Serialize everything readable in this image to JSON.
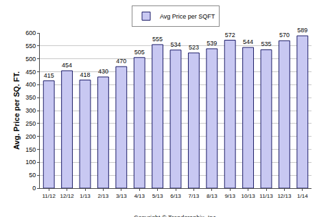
{
  "chart_data": {
    "type": "bar",
    "categories": [
      "11/12",
      "12/12",
      "1/13",
      "2/13",
      "3/13",
      "4/13",
      "5/13",
      "6/13",
      "7/13",
      "8/13",
      "9/13",
      "10/13",
      "11/13",
      "12/13",
      "1/14"
    ],
    "series": [
      {
        "name": "Avg Price per SQFT",
        "color": "#c8c8f2",
        "values": [
          415,
          454,
          418,
          430,
          470,
          505,
          555,
          534,
          523,
          539,
          572,
          544,
          535,
          570,
          589
        ]
      }
    ],
    "y_label": "Avg. Price per SQ. FT.",
    "ylim": [
      0,
      600
    ],
    "yticks": [
      0,
      50,
      100,
      150,
      200,
      250,
      300,
      350,
      400,
      450,
      500,
      550,
      600
    ],
    "grid": true,
    "legend": "top",
    "data_labels": true,
    "annotations": [
      "Copyright © Trendgraphix, Inc."
    ]
  }
}
